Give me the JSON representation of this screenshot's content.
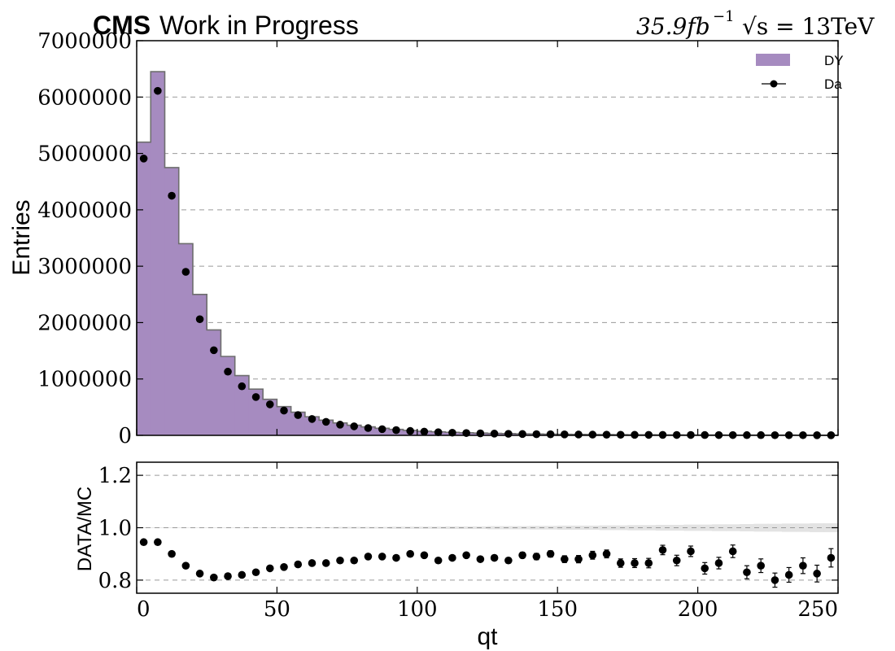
{
  "header": {
    "cms": "CMS",
    "wip": "Work in Progress",
    "lumi": "35.9fb",
    "lumi_exp": "−1",
    "energy": "√s = 13TeV"
  },
  "chart_data": [
    {
      "type": "bar",
      "panel": "main",
      "ylabel": "Entries",
      "xlim": [
        0,
        250
      ],
      "ylim": [
        0,
        7000000
      ],
      "yticks": [
        0,
        1000000,
        2000000,
        3000000,
        4000000,
        5000000,
        6000000,
        7000000
      ],
      "ytick_labels": [
        "0",
        "1000000",
        "2000000",
        "3000000",
        "4000000",
        "5000000",
        "6000000",
        "7000000"
      ],
      "grid": "horizontal dashed",
      "legend_position": "top-right",
      "bin_width": 5,
      "series": [
        {
          "name": "DY",
          "kind": "histogram",
          "color": "#a68bc0",
          "bin_edges": [
            0,
            5,
            10,
            15,
            20,
            25,
            30,
            35,
            40,
            45,
            50,
            55,
            60,
            65,
            70,
            75,
            80,
            85,
            90,
            95,
            100,
            105,
            110,
            115,
            120,
            125,
            130,
            135,
            140,
            145,
            150,
            155,
            160,
            165,
            170,
            175,
            180,
            185,
            190,
            195,
            200,
            205,
            210,
            215,
            220,
            225,
            230,
            235,
            240,
            245,
            250
          ],
          "values": [
            5200000,
            6450000,
            4750000,
            3400000,
            2500000,
            1870000,
            1400000,
            1060000,
            820000,
            640000,
            510000,
            410000,
            330000,
            270000,
            220000,
            180000,
            150000,
            125000,
            105000,
            88000,
            74000,
            63000,
            54000,
            46000,
            40000,
            35000,
            31000,
            27000,
            24000,
            21000,
            19000,
            17000,
            15000,
            13500,
            12000,
            11000,
            10000,
            9000,
            8000,
            7300,
            6600,
            6000,
            5500,
            5000,
            4600,
            4200,
            3800,
            3500,
            3200,
            2900
          ]
        },
        {
          "name": "Da",
          "kind": "points",
          "color": "#000000",
          "x": [
            2.5,
            7.5,
            12.5,
            17.5,
            22.5,
            27.5,
            32.5,
            37.5,
            42.5,
            47.5,
            52.5,
            57.5,
            62.5,
            67.5,
            72.5,
            77.5,
            82.5,
            87.5,
            92.5,
            97.5,
            102.5,
            107.5,
            112.5,
            117.5,
            122.5,
            127.5,
            132.5,
            137.5,
            142.5,
            147.5,
            152.5,
            157.5,
            162.5,
            167.5,
            172.5,
            177.5,
            182.5,
            187.5,
            192.5,
            197.5,
            202.5,
            207.5,
            212.5,
            217.5,
            222.5,
            227.5,
            232.5,
            237.5,
            242.5,
            247.5
          ],
          "values": [
            4910000,
            6110000,
            4250000,
            2900000,
            2060000,
            1510000,
            1130000,
            870000,
            680000,
            550000,
            440000,
            360000,
            290000,
            240000,
            190000,
            160000,
            130000,
            110000,
            93000,
            78000,
            66000,
            55000,
            47000,
            41000,
            35000,
            31000,
            27000,
            24000,
            21000,
            19000,
            17000,
            15000,
            13000,
            12000,
            10500,
            9500,
            8700,
            8300,
            7000,
            6600,
            5600,
            5200,
            5000,
            4200,
            3900,
            3400,
            3100,
            3000,
            2700,
            2600
          ]
        }
      ]
    },
    {
      "type": "scatter",
      "panel": "ratio",
      "xlabel": "qt",
      "ylabel": "DATA/MC",
      "xlim": [
        0,
        250
      ],
      "ylim": [
        0.75,
        1.25
      ],
      "xticks": [
        0,
        50,
        100,
        150,
        200,
        250
      ],
      "xtick_labels": [
        "0",
        "50",
        "100",
        "150",
        "200",
        "250"
      ],
      "yticks": [
        0.8,
        1.0,
        1.2
      ],
      "ytick_labels": [
        "0.8",
        "1.0",
        "1.2"
      ],
      "grid": "horizontal dashed",
      "band_color": "#e3e3e3",
      "band_halfwidth": [
        0.001,
        0.001,
        0.001,
        0.001,
        0.001,
        0.001,
        0.001,
        0.001,
        0.001,
        0.001,
        0.002,
        0.002,
        0.002,
        0.002,
        0.003,
        0.003,
        0.003,
        0.003,
        0.004,
        0.004,
        0.004,
        0.004,
        0.005,
        0.005,
        0.005,
        0.006,
        0.006,
        0.006,
        0.007,
        0.007,
        0.008,
        0.008,
        0.008,
        0.009,
        0.009,
        0.01,
        0.01,
        0.011,
        0.011,
        0.012,
        0.012,
        0.013,
        0.013,
        0.014,
        0.015,
        0.015,
        0.016,
        0.016,
        0.017,
        0.017
      ],
      "x": [
        2.5,
        7.5,
        12.5,
        17.5,
        22.5,
        27.5,
        32.5,
        37.5,
        42.5,
        47.5,
        52.5,
        57.5,
        62.5,
        67.5,
        72.5,
        77.5,
        82.5,
        87.5,
        92.5,
        97.5,
        102.5,
        107.5,
        112.5,
        117.5,
        122.5,
        127.5,
        132.5,
        137.5,
        142.5,
        147.5,
        152.5,
        157.5,
        162.5,
        167.5,
        172.5,
        177.5,
        182.5,
        187.5,
        192.5,
        197.5,
        202.5,
        207.5,
        212.5,
        217.5,
        222.5,
        227.5,
        232.5,
        237.5,
        242.5,
        247.5
      ],
      "values": [
        0.945,
        0.945,
        0.9,
        0.855,
        0.825,
        0.81,
        0.815,
        0.82,
        0.83,
        0.845,
        0.85,
        0.86,
        0.865,
        0.865,
        0.875,
        0.875,
        0.89,
        0.89,
        0.885,
        0.9,
        0.895,
        0.875,
        0.885,
        0.895,
        0.88,
        0.885,
        0.875,
        0.895,
        0.89,
        0.9,
        0.88,
        0.88,
        0.895,
        0.9,
        0.865,
        0.865,
        0.865,
        0.915,
        0.875,
        0.91,
        0.845,
        0.865,
        0.91,
        0.83,
        0.855,
        0.8,
        0.82,
        0.855,
        0.825,
        0.885
      ],
      "errors": [
        0.003,
        0.003,
        0.003,
        0.003,
        0.003,
        0.003,
        0.003,
        0.004,
        0.004,
        0.004,
        0.004,
        0.004,
        0.005,
        0.005,
        0.005,
        0.005,
        0.006,
        0.006,
        0.006,
        0.007,
        0.007,
        0.008,
        0.008,
        0.009,
        0.009,
        0.01,
        0.01,
        0.011,
        0.012,
        0.012,
        0.013,
        0.014,
        0.015,
        0.015,
        0.016,
        0.017,
        0.018,
        0.018,
        0.02,
        0.02,
        0.022,
        0.022,
        0.024,
        0.025,
        0.026,
        0.027,
        0.028,
        0.03,
        0.032,
        0.035
      ]
    }
  ]
}
